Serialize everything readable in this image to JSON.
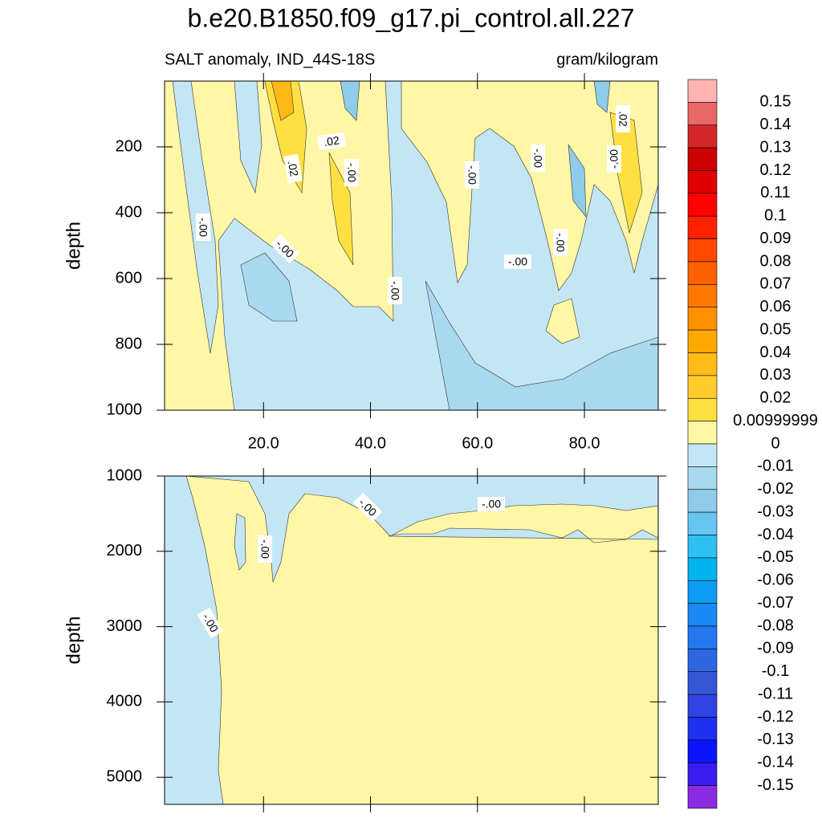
{
  "chart_data": {
    "type": "contour",
    "title": "b.e20.B1850.f09_g17.pi_control.all.227",
    "left_subtitle": "SALT anomaly, IND_44S-18S",
    "right_subtitle": "gram/kilogram",
    "colorbar": {
      "levels": [
        0.15,
        0.14,
        0.13,
        0.12,
        0.11,
        0.1,
        0.09,
        0.08,
        0.07,
        0.06,
        0.05,
        0.04,
        0.03,
        0.02,
        0.00999999,
        0,
        -0.01,
        -0.02,
        -0.03,
        -0.04,
        -0.05,
        -0.06,
        -0.07,
        -0.08,
        -0.09,
        -0.1,
        -0.11,
        -0.12,
        -0.13,
        -0.14,
        -0.15
      ],
      "colors": [
        "#ffb4b4",
        "#e86868",
        "#d32626",
        "#cc0000",
        "#e00000",
        "#ff0000",
        "#ff2200",
        "#ff4a00",
        "#ff6000",
        "#ff7800",
        "#ff9000",
        "#ffa800",
        "#ffbb18",
        "#ffcc2c",
        "#ffe040",
        "#fff6a6",
        "#c4e6f4",
        "#a9d9ef",
        "#8fcbea",
        "#68c4f1",
        "#2ec0f2",
        "#00b4f0",
        "#0c9cf5",
        "#1a88f5",
        "#2478ef",
        "#2d66e3",
        "#3656d8",
        "#2f44e2",
        "#1f30f0",
        "#0a14ff",
        "#3a1cf0",
        "#8a2be2"
      ]
    },
    "panels": [
      {
        "ylabel": "depth",
        "ylim": [
          0,
          1000
        ],
        "yticks": [
          200,
          400,
          600,
          800,
          1000
        ],
        "xlim": [
          1.5,
          93.8
        ],
        "xticks": [
          {
            "value": 20,
            "label": "20.0"
          },
          {
            "value": 40,
            "label": "40.0"
          },
          {
            "value": 60,
            "label": "60.0"
          },
          {
            "value": 80,
            "label": "80.0"
          }
        ],
        "contour_labels": [
          ".02",
          ".02",
          "-.00",
          "-.00",
          "-.00",
          "-.00",
          "-.00",
          "-.00",
          "-.00",
          "-.00",
          "-.00",
          ".02"
        ]
      },
      {
        "ylabel": "depth",
        "ylim": [
          1000,
          5360
        ],
        "yticks": [
          1000,
          2000,
          3000,
          4000,
          5000
        ],
        "xlim": [
          1.5,
          93.8
        ],
        "contour_labels": [
          "-.00",
          "-.00",
          "-.00",
          "-.00"
        ]
      }
    ]
  }
}
